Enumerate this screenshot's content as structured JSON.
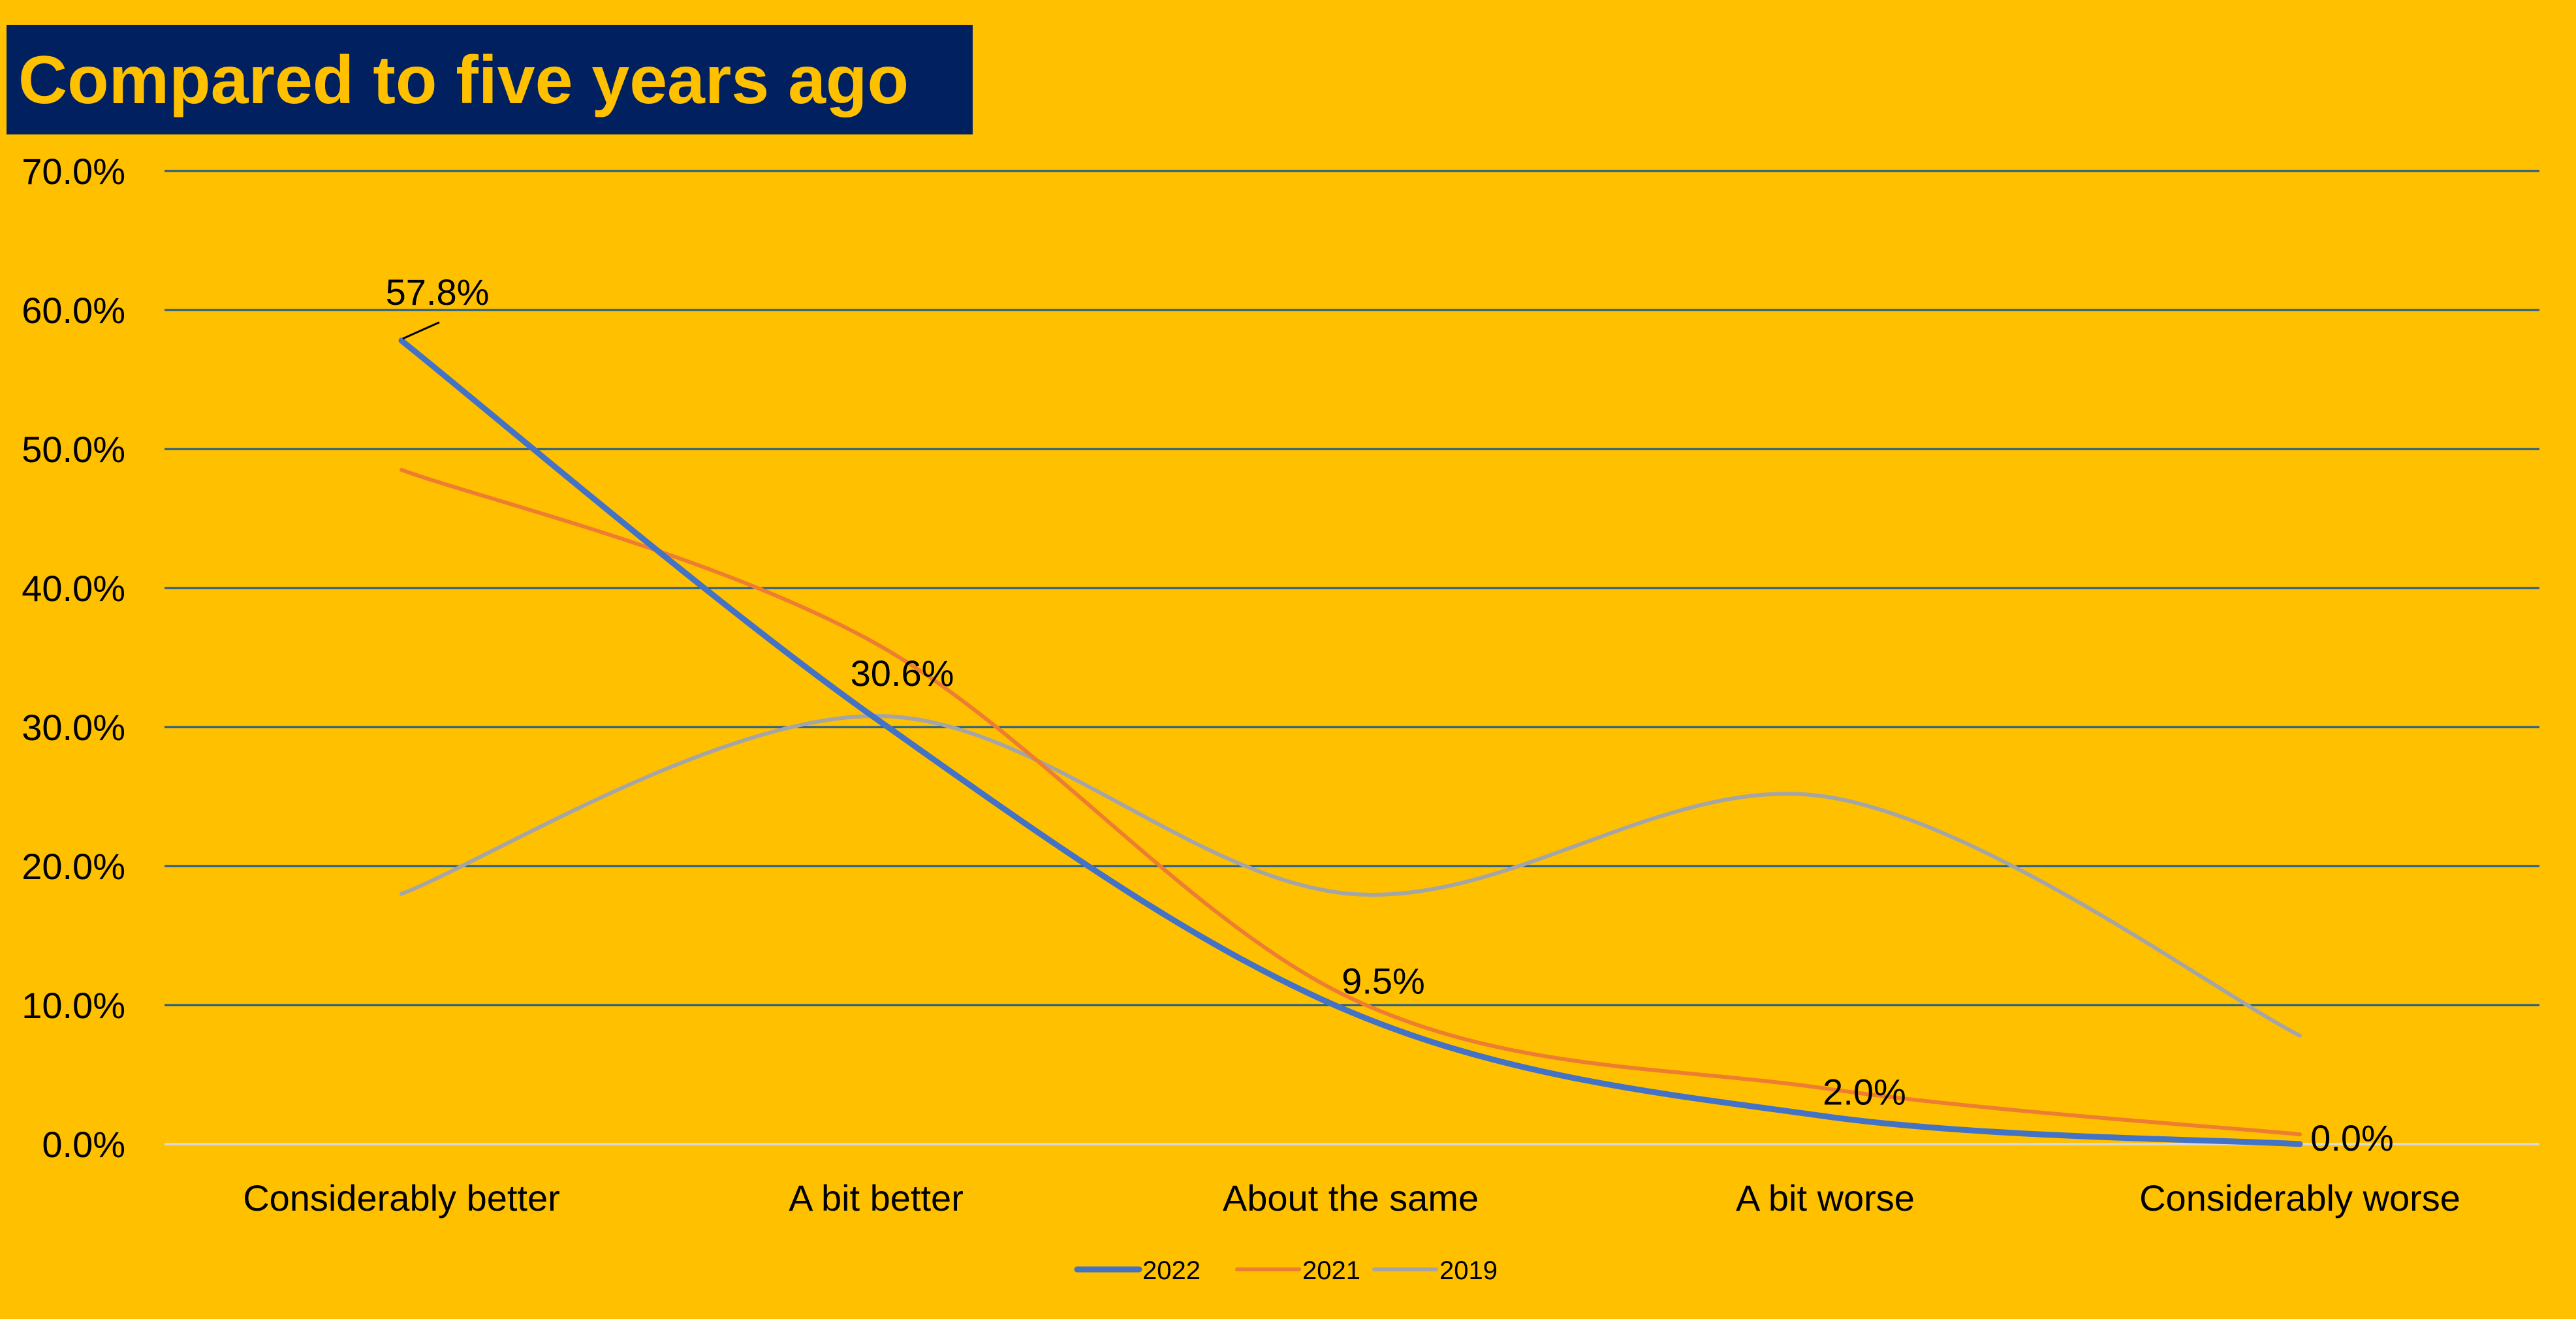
{
  "colors": {
    "background": "#FFC000",
    "title_bg": "#002060",
    "title_text": "#FFC000",
    "gridline": "#1F5C8B",
    "zero_line": "#D9D9D9",
    "text": "#000000",
    "series_2022": "#4472C4",
    "series_2021": "#ED7D31",
    "series_2019": "#A5A5A5"
  },
  "chart_data": {
    "type": "line",
    "title": "Compared to five years ago",
    "categories": [
      "Considerably better",
      "A bit better",
      "About the same",
      "A bit worse",
      "Considerably worse"
    ],
    "series": [
      {
        "name": "2022",
        "values": [
          57.8,
          30.6,
          9.5,
          2.0,
          0.0
        ],
        "labels": [
          "57.8%",
          "30.6%",
          "9.5%",
          "2.0%",
          "0.0%"
        ]
      },
      {
        "name": "2021",
        "values": [
          48.5,
          36.0,
          10.5,
          4.0,
          0.7
        ]
      },
      {
        "name": "2019",
        "values": [
          18.0,
          30.8,
          18.0,
          25.0,
          7.8
        ]
      }
    ],
    "ylim": [
      0,
      70
    ],
    "yticks": [
      "0.0%",
      "10.0%",
      "20.0%",
      "30.0%",
      "40.0%",
      "50.0%",
      "60.0%",
      "70.0%"
    ],
    "grid": true,
    "smooth": true,
    "legend_position": "bottom",
    "data_labels_series": "2022"
  }
}
